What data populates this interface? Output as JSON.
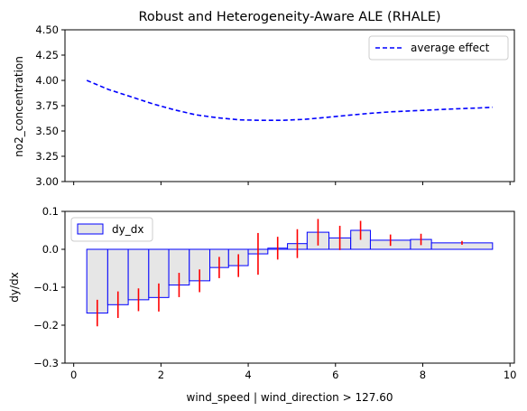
{
  "chart_data": [
    {
      "type": "line",
      "title": "Robust and Heterogeneity-Aware ALE (RHALE)",
      "xlabel": "",
      "ylabel": "no2_concentration",
      "xlim": [
        -0.2,
        10.1
      ],
      "ylim": [
        3.0,
        4.5
      ],
      "yticks": [
        "3.00",
        "3.25",
        "3.50",
        "3.75",
        "4.00",
        "4.25",
        "4.50"
      ],
      "legend": "top-right",
      "series": [
        {
          "name": "average effect",
          "color": "#0000ff",
          "style": "dashed",
          "x": [
            0.3,
            0.8,
            1.3,
            1.8,
            2.3,
            2.8,
            3.3,
            3.8,
            4.3,
            4.8,
            5.3,
            5.8,
            6.3,
            6.8,
            7.3,
            7.8,
            8.3,
            8.8,
            9.3,
            9.6
          ],
          "y": [
            4.0,
            3.91,
            3.84,
            3.77,
            3.71,
            3.66,
            3.63,
            3.61,
            3.605,
            3.605,
            3.615,
            3.635,
            3.655,
            3.675,
            3.69,
            3.7,
            3.71,
            3.72,
            3.728,
            3.735
          ]
        }
      ]
    },
    {
      "type": "bar",
      "title": "",
      "xlabel": "wind_speed | wind_direction > 127.60",
      "ylabel": "dy/dx",
      "xlim": [
        -0.2,
        10.1
      ],
      "ylim": [
        -0.3,
        0.1
      ],
      "xticks": [
        "0",
        "2",
        "4",
        "6",
        "8",
        "10"
      ],
      "yticks": [
        "−0.3",
        "−0.2",
        "−0.1",
        "0.0",
        "0.1"
      ],
      "legend": "top-left",
      "series": [
        {
          "name": "dy_dx",
          "bar_edges": [
            0.3,
            0.78,
            1.25,
            1.72,
            2.18,
            2.65,
            3.12,
            3.55,
            4.0,
            4.45,
            4.9,
            5.35,
            5.85,
            6.35,
            6.8,
            7.72,
            8.2,
            9.6
          ],
          "values": [
            -0.168,
            -0.146,
            -0.133,
            -0.127,
            -0.094,
            -0.083,
            -0.048,
            -0.043,
            -0.012,
            0.003,
            0.015,
            0.045,
            0.03,
            0.05,
            0.024,
            0.026,
            0.017
          ],
          "errors": [
            0.035,
            0.035,
            0.03,
            0.037,
            0.032,
            0.03,
            0.028,
            0.03,
            0.055,
            0.03,
            0.038,
            0.035,
            0.032,
            0.025,
            0.015,
            0.015,
            0.005
          ],
          "fill_color": "#e6e6e6",
          "edge_color": "#0000ff",
          "error_color": "#ff0000"
        }
      ]
    }
  ]
}
